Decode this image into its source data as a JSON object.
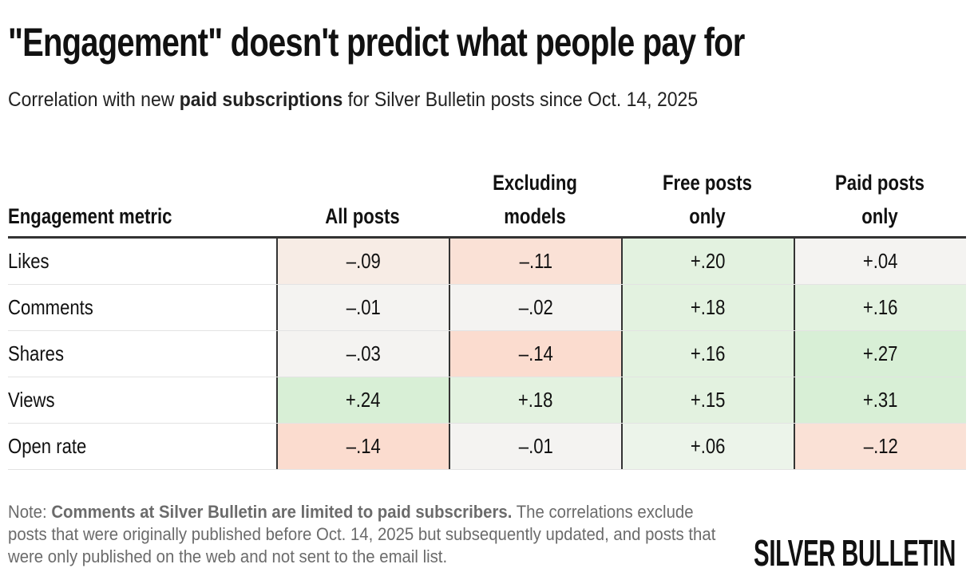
{
  "title": "\"Engagement\" doesn't predict what people pay for",
  "subtitle": {
    "before": "Correlation with new ",
    "bold": "paid subscriptions",
    "after": " for Silver Bulletin posts since Oct. 14, 2025"
  },
  "colors": {
    "strong_positive": "#d8efd6",
    "mid_positive": "#e3f2e0",
    "light_positive": "#ecf4ea",
    "neutral": "#f4f3f1",
    "light_negative": "#f7ece5",
    "mid_negative": "#fae1d6",
    "strong_negative": "#fbdccf"
  },
  "chart_data": {
    "type": "table",
    "columns": [
      {
        "lines": [
          "Engagement metric"
        ]
      },
      {
        "lines": [
          "All posts"
        ]
      },
      {
        "lines": [
          "Excluding",
          "models"
        ]
      },
      {
        "lines": [
          "Free posts",
          "only"
        ]
      },
      {
        "lines": [
          "Paid posts",
          "only"
        ]
      }
    ],
    "rows": [
      {
        "label": "Likes",
        "values": [
          -0.09,
          -0.11,
          0.2,
          0.04
        ],
        "display": [
          "–.09",
          "–.11",
          "+.20",
          "+.04"
        ]
      },
      {
        "label": "Comments",
        "values": [
          -0.01,
          -0.02,
          0.18,
          0.16
        ],
        "display": [
          "–.01",
          "–.02",
          "+.18",
          "+.16"
        ]
      },
      {
        "label": "Shares",
        "values": [
          -0.03,
          -0.14,
          0.16,
          0.27
        ],
        "display": [
          "–.03",
          "–.14",
          "+.16",
          "+.27"
        ]
      },
      {
        "label": "Views",
        "values": [
          0.24,
          0.18,
          0.15,
          0.31
        ],
        "display": [
          "+.24",
          "+.18",
          "+.15",
          "+.31"
        ]
      },
      {
        "label": "Open rate",
        "values": [
          -0.14,
          -0.01,
          0.06,
          -0.12
        ],
        "display": [
          "–.14",
          "–.01",
          "+.06",
          "–.12"
        ]
      }
    ]
  },
  "note": {
    "prefix": "Note: ",
    "bold": "Comments at Silver Bulletin are limited to paid subscribers.",
    "rest": " The correlations exclude posts that were originally published before Oct. 14, 2025 but subsequently updated, and posts that were only published on the web and not sent to the email list."
  },
  "logo": "SILVER BULLETIN"
}
